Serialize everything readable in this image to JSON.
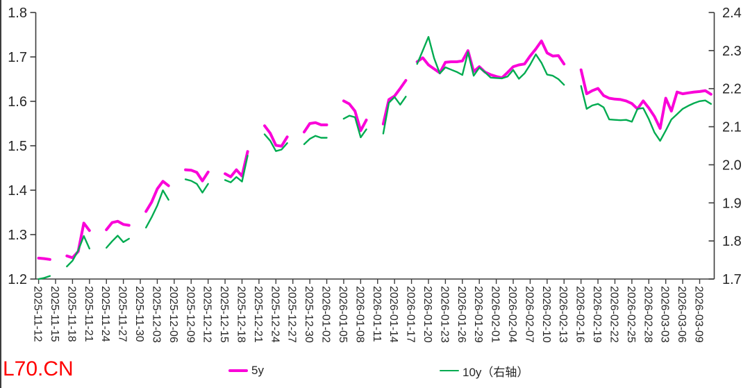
{
  "watermark": {
    "text": "L70.CN",
    "color": "#ff0000"
  },
  "legend": {
    "position": "bottom",
    "items": [
      {
        "label": "5y"
      },
      {
        "label": "10y（右轴）"
      }
    ]
  },
  "chart_data": {
    "type": "line",
    "title": "",
    "grid": false,
    "background": "#ffffff",
    "axis_color": "#3c3c3c",
    "text_color": "#262626",
    "x_axis": {
      "start_date": "2025-11-12",
      "end_date": "2026-03-11",
      "tick_every_days": 3,
      "tick_label_rotation_deg": 90,
      "tick_labels": [
        "2025-11-12",
        "2025-11-15",
        "2025-11-18",
        "2025-11-21",
        "2025-11-24",
        "2025-11-27",
        "2025-11-30",
        "2025-12-03",
        "2025-12-06",
        "2025-12-09",
        "2025-12-12",
        "2025-12-15",
        "2025-12-18",
        "2025-12-21",
        "2025-12-24",
        "2025-12-27",
        "2025-12-30",
        "2026-01-02",
        "2026-01-05",
        "2026-01-08",
        "2026-01-11",
        "2026-01-14",
        "2026-01-17",
        "2026-01-20",
        "2026-01-23",
        "2026-01-26",
        "2026-01-29",
        "2026-02-01",
        "2026-02-04",
        "2026-02-07",
        "2026-02-10",
        "2026-02-13",
        "2026-02-16",
        "2026-02-19",
        "2026-02-22",
        "2026-02-25",
        "2026-02-28",
        "2026-03-03",
        "2026-03-06",
        "2026-03-09"
      ]
    },
    "y_axis_left": {
      "min": 1.2,
      "max": 1.8,
      "tick_labels": [
        "1.8",
        "1.7",
        "1.6",
        "1.5",
        "1.4",
        "1.3",
        "1.2"
      ]
    },
    "y_axis_right": {
      "min": 1.7,
      "max": 2.4,
      "tick_labels": [
        "2.4",
        "2.3",
        "2.2",
        "2.1",
        "2.0",
        "1.9",
        "1.8",
        "1.7"
      ]
    },
    "series": [
      {
        "name": "5y",
        "axis": "left",
        "color": "#fa00d8",
        "stroke_width": 4,
        "segments": [
          {
            "start_day": 0,
            "values": [
              1.247,
              1.246,
              1.244
            ]
          },
          {
            "start_day": 5,
            "values": [
              1.252,
              1.248,
              1.262,
              1.326,
              1.309
            ]
          },
          {
            "start_day": 12,
            "values": [
              1.311,
              1.327,
              1.33,
              1.323,
              1.321
            ]
          },
          {
            "start_day": 19,
            "values": [
              1.352,
              1.373,
              1.403,
              1.42,
              1.41
            ]
          },
          {
            "start_day": 26,
            "values": [
              1.446,
              1.445,
              1.44,
              1.421,
              1.441
            ]
          },
          {
            "start_day": 33,
            "values": [
              1.437,
              1.43,
              1.446,
              1.432,
              1.487
            ]
          },
          {
            "start_day": 40,
            "values": [
              1.545,
              1.528,
              1.501,
              1.499,
              1.52
            ]
          },
          {
            "start_day": 47,
            "values": [
              1.531,
              1.55,
              1.552,
              1.547,
              1.547
            ]
          },
          {
            "start_day": 54,
            "values": [
              1.601,
              1.594,
              1.578,
              1.534,
              1.558
            ]
          },
          {
            "start_day": 61,
            "values": [
              1.549,
              1.604,
              1.612,
              1.629,
              1.647
            ]
          },
          {
            "start_day": 67,
            "values": [
              1.689,
              1.698,
              1.682,
              1.673,
              1.664,
              1.688,
              1.689,
              1.689,
              1.691,
              1.714,
              1.667,
              1.678,
              1.666,
              1.66,
              1.656,
              1.653,
              1.665,
              1.678,
              1.682,
              1.684,
              1.702,
              1.718,
              1.736,
              1.709,
              1.702,
              1.703,
              1.684
            ]
          },
          {
            "start_day": 96,
            "values": [
              1.671,
              1.617,
              1.624,
              1.629,
              1.613,
              1.607,
              1.605,
              1.604,
              1.601,
              1.595,
              1.583,
              1.601,
              1.585,
              1.566,
              1.539,
              1.607,
              1.578,
              1.621,
              1.617,
              1.619,
              1.621,
              1.622,
              1.624,
              1.616
            ]
          }
        ]
      },
      {
        "name": "10y（右轴）",
        "axis": "right",
        "color": "#00ab50",
        "stroke_width": 2.4,
        "segments": [
          {
            "start_day": 0,
            "values": [
              1.7,
              1.703,
              1.708
            ]
          },
          {
            "start_day": 5,
            "values": [
              1.733,
              1.748,
              1.775,
              1.813,
              1.78
            ]
          },
          {
            "start_day": 12,
            "values": [
              1.782,
              1.799,
              1.814,
              1.797,
              1.806
            ]
          },
          {
            "start_day": 19,
            "values": [
              1.835,
              1.862,
              1.893,
              1.933,
              1.908
            ]
          },
          {
            "start_day": 26,
            "values": [
              1.962,
              1.958,
              1.95,
              1.927,
              1.95
            ]
          },
          {
            "start_day": 33,
            "values": [
              1.96,
              1.954,
              1.968,
              1.956,
              2.024
            ]
          },
          {
            "start_day": 40,
            "values": [
              2.08,
              2.063,
              2.036,
              2.04,
              2.057
            ]
          },
          {
            "start_day": 47,
            "values": [
              2.054,
              2.068,
              2.076,
              2.071,
              2.071
            ]
          },
          {
            "start_day": 54,
            "values": [
              2.121,
              2.129,
              2.125,
              2.072,
              2.093
            ]
          },
          {
            "start_day": 61,
            "values": [
              2.082,
              2.163,
              2.178,
              2.158,
              2.179
            ]
          },
          {
            "start_day": 67,
            "values": [
              2.265,
              2.3,
              2.336,
              2.28,
              2.24,
              2.256,
              2.25,
              2.244,
              2.236,
              2.296,
              2.234,
              2.255,
              2.243,
              2.229,
              2.228,
              2.227,
              2.232,
              2.249,
              2.226,
              2.24,
              2.263,
              2.29,
              2.268,
              2.237,
              2.234,
              2.225,
              2.21
            ]
          },
          {
            "start_day": 96,
            "values": [
              2.207,
              2.147,
              2.156,
              2.16,
              2.151,
              2.119,
              2.118,
              2.117,
              2.118,
              2.113,
              2.147,
              2.149,
              2.12,
              2.085,
              2.063,
              2.09,
              2.119,
              2.133,
              2.147,
              2.155,
              2.162,
              2.167,
              2.169,
              2.16
            ]
          }
        ]
      }
    ]
  }
}
